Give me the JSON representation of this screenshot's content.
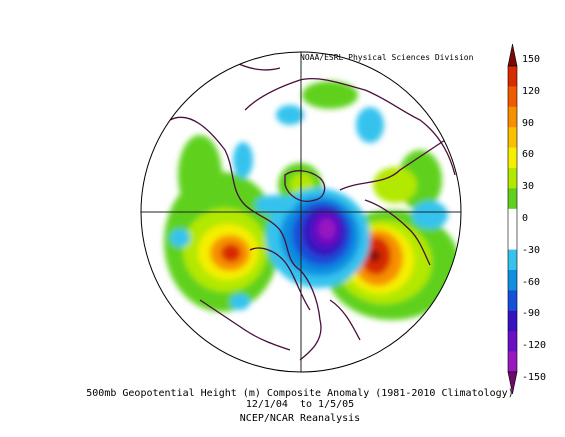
{
  "map": {
    "credit": "NOAA/ESRL Physical Sciences Division",
    "caption_line1": "500mb Geopotential Height (m) Composite Anomaly (1981-2010 Climatology)",
    "caption_line2": "12/1/04  to 1/5/05",
    "caption_line3": "NCEP/NCAR Reanalysis"
  },
  "colorbar": {
    "ticks": [
      "150",
      "120",
      "90",
      "60",
      "30",
      "0",
      "-30",
      "-60",
      "-90",
      "-120",
      "-150"
    ],
    "colors": [
      "#7a0a0a",
      "#d72b00",
      "#f05a00",
      "#f79000",
      "#fbc000",
      "#f5ef00",
      "#b3e800",
      "#5fd11e",
      "#ffffff",
      "#ffffff",
      "#35c3ee",
      "#108fe0",
      "#1550d8",
      "#3513c0",
      "#6a0fc3",
      "#9a18c0",
      "#6e0a6e"
    ]
  }
}
